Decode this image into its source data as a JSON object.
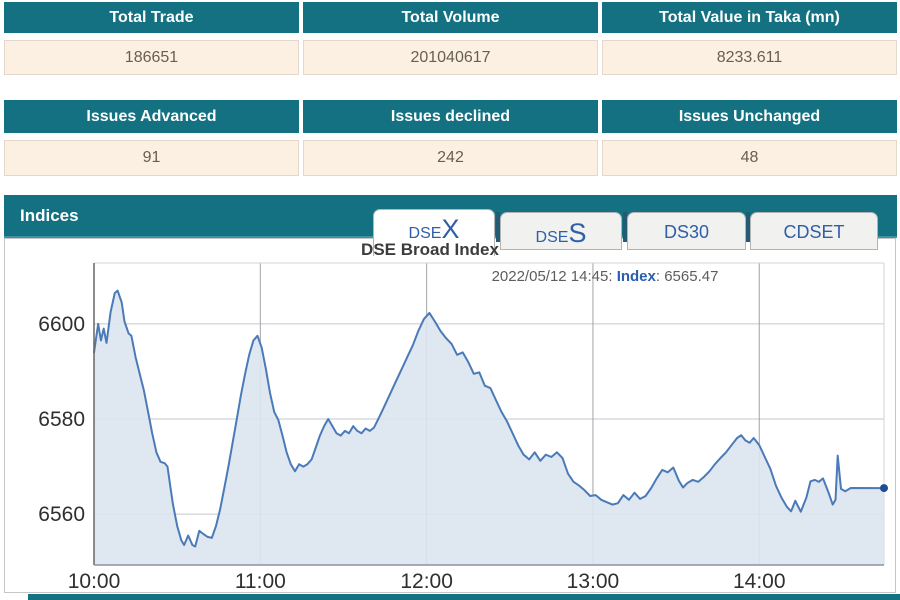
{
  "summary_table_1": {
    "headers": [
      "Total Trade",
      "Total Volume",
      "Total Value in Taka (mn)"
    ],
    "values": [
      "186651",
      "201040617",
      "8233.611"
    ]
  },
  "summary_table_2": {
    "headers": [
      "Issues Advanced",
      "Issues declined",
      "Issues Unchanged"
    ],
    "values": [
      "91",
      "242",
      "48"
    ]
  },
  "indices": {
    "title": "Indices",
    "tabs": [
      {
        "prefix": "DSE",
        "suffix": "X",
        "active": true
      },
      {
        "prefix": "DSE",
        "suffix": "S",
        "active": false
      },
      {
        "prefix": "DS30",
        "suffix": "",
        "active": false
      },
      {
        "prefix": "CDSET",
        "suffix": "",
        "active": false
      }
    ]
  },
  "chart_data": {
    "type": "area",
    "title": "DSE Broad Index",
    "tooltip": {
      "prefix": "2022/05/12 14:45: ",
      "label": "Index",
      "suffix": ": 6565.47"
    },
    "last_value": 6565.47,
    "x_ticks": [
      "10:00",
      "11:00",
      "12:00",
      "13:00",
      "14:00"
    ],
    "x_tick_minutes": [
      0,
      60,
      120,
      180,
      240
    ],
    "y_ticks": [
      6560,
      6580,
      6600
    ],
    "xlim": [
      0,
      285
    ],
    "ylim": [
      6549.3,
      6612.8
    ],
    "grid": true,
    "line_color": "#4a7ab8",
    "fill_color": "#dce4f0",
    "marker_color": "#1d4e94",
    "series": [
      {
        "name": "Index",
        "points": [
          [
            0,
            6594
          ],
          [
            1.5,
            6600
          ],
          [
            2.5,
            6596.5
          ],
          [
            3.5,
            6599
          ],
          [
            4.5,
            6596
          ],
          [
            6,
            6602.5
          ],
          [
            7.5,
            6606.5
          ],
          [
            8.5,
            6607
          ],
          [
            10,
            6604.5
          ],
          [
            11,
            6600.5
          ],
          [
            12.5,
            6598
          ],
          [
            13.5,
            6597.5
          ],
          [
            15,
            6593
          ],
          [
            16.5,
            6589.5
          ],
          [
            18,
            6586
          ],
          [
            19.5,
            6581.5
          ],
          [
            21,
            6577
          ],
          [
            22.5,
            6573
          ],
          [
            24,
            6571
          ],
          [
            25.5,
            6570.7
          ],
          [
            26.5,
            6570
          ],
          [
            27.5,
            6566
          ],
          [
            28.5,
            6562
          ],
          [
            30,
            6557.5
          ],
          [
            31.5,
            6554.5
          ],
          [
            32.5,
            6553.5
          ],
          [
            34,
            6555.5
          ],
          [
            35.5,
            6553.5
          ],
          [
            36.5,
            6553.2
          ],
          [
            38,
            6556.5
          ],
          [
            39.5,
            6555.8
          ],
          [
            41,
            6555.2
          ],
          [
            42.5,
            6555
          ],
          [
            44,
            6557.5
          ],
          [
            45.5,
            6561
          ],
          [
            47,
            6565.5
          ],
          [
            48.5,
            6570
          ],
          [
            50,
            6575
          ],
          [
            51.5,
            6580
          ],
          [
            53,
            6585
          ],
          [
            54.5,
            6589.5
          ],
          [
            56,
            6593.5
          ],
          [
            57.5,
            6596.5
          ],
          [
            59,
            6597.5
          ],
          [
            60.5,
            6595
          ],
          [
            62,
            6590.5
          ],
          [
            63.5,
            6585.5
          ],
          [
            65,
            6581.5
          ],
          [
            66.5,
            6579.8
          ],
          [
            68,
            6576.5
          ],
          [
            69.5,
            6573
          ],
          [
            71,
            6570.5
          ],
          [
            72.5,
            6569
          ],
          [
            74,
            6570.5
          ],
          [
            75.5,
            6570
          ],
          [
            77,
            6570.5
          ],
          [
            78.5,
            6571.5
          ],
          [
            80,
            6574
          ],
          [
            81.5,
            6576.5
          ],
          [
            83,
            6578.5
          ],
          [
            84.5,
            6580
          ],
          [
            86,
            6578.5
          ],
          [
            87.5,
            6577
          ],
          [
            89,
            6576.5
          ],
          [
            90.5,
            6577.5
          ],
          [
            92,
            6577
          ],
          [
            93.5,
            6578.5
          ],
          [
            95,
            6577.5
          ],
          [
            96.5,
            6577
          ],
          [
            98,
            6578
          ],
          [
            99.5,
            6577.5
          ],
          [
            101,
            6578.2
          ],
          [
            103,
            6580.5
          ],
          [
            105,
            6583
          ],
          [
            107,
            6585.5
          ],
          [
            109,
            6588
          ],
          [
            111,
            6590.5
          ],
          [
            113,
            6593
          ],
          [
            115,
            6595.5
          ],
          [
            117,
            6598.5
          ],
          [
            119,
            6601
          ],
          [
            121,
            6602.3
          ],
          [
            123,
            6600.5
          ],
          [
            125,
            6598.5
          ],
          [
            127,
            6597
          ],
          [
            129,
            6595.8
          ],
          [
            131,
            6593.5
          ],
          [
            133,
            6594
          ],
          [
            135,
            6592
          ],
          [
            137,
            6589.5
          ],
          [
            139,
            6589.8
          ],
          [
            141,
            6587
          ],
          [
            143,
            6586.5
          ],
          [
            145,
            6584
          ],
          [
            147,
            6581.5
          ],
          [
            149,
            6579.5
          ],
          [
            151,
            6577
          ],
          [
            153,
            6574.5
          ],
          [
            155,
            6572.5
          ],
          [
            157,
            6571.5
          ],
          [
            159,
            6573
          ],
          [
            161,
            6571.2
          ],
          [
            163,
            6572.5
          ],
          [
            165,
            6572
          ],
          [
            167,
            6573
          ],
          [
            169,
            6571.8
          ],
          [
            171,
            6568.5
          ],
          [
            173,
            6566.8
          ],
          [
            175,
            6566
          ],
          [
            177,
            6565
          ],
          [
            179,
            6563.8
          ],
          [
            181,
            6564
          ],
          [
            183,
            6563
          ],
          [
            185,
            6562.5
          ],
          [
            187,
            6562
          ],
          [
            189,
            6562.3
          ],
          [
            191,
            6564
          ],
          [
            193,
            6563
          ],
          [
            195,
            6564.5
          ],
          [
            197,
            6563.2
          ],
          [
            199,
            6563.8
          ],
          [
            201,
            6565.5
          ],
          [
            203,
            6567.5
          ],
          [
            205,
            6569.3
          ],
          [
            207,
            6568.8
          ],
          [
            209,
            6569.8
          ],
          [
            211,
            6567
          ],
          [
            212.5,
            6565.6
          ],
          [
            214,
            6566.5
          ],
          [
            216,
            6567.2
          ],
          [
            218,
            6566.8
          ],
          [
            220,
            6567.8
          ],
          [
            222,
            6569
          ],
          [
            224,
            6570.5
          ],
          [
            226,
            6571.8
          ],
          [
            228,
            6573
          ],
          [
            230,
            6574.5
          ],
          [
            232,
            6576
          ],
          [
            233.5,
            6576.6
          ],
          [
            235,
            6575.5
          ],
          [
            236.5,
            6575
          ],
          [
            238,
            6576
          ],
          [
            240,
            6574.5
          ],
          [
            242,
            6572
          ],
          [
            244,
            6569.5
          ],
          [
            246,
            6566
          ],
          [
            248,
            6563.5
          ],
          [
            250,
            6561.5
          ],
          [
            251.5,
            6560.6
          ],
          [
            253,
            6562.8
          ],
          [
            255,
            6560.5
          ],
          [
            257,
            6563.5
          ],
          [
            258.5,
            6566.9
          ],
          [
            260,
            6567.2
          ],
          [
            261.5,
            6566.8
          ],
          [
            263,
            6567.5
          ],
          [
            265,
            6564.5
          ],
          [
            266.5,
            6562
          ],
          [
            267.5,
            6563
          ],
          [
            268.3,
            6572.3
          ],
          [
            269.5,
            6565.3
          ],
          [
            271,
            6564.8
          ],
          [
            273,
            6565.5
          ],
          [
            285,
            6565.47
          ]
        ]
      }
    ]
  },
  "colors": {
    "teal_header": "#147181",
    "cream_row": "#fcf0e2",
    "tab_text_blue": "#2e5fa7",
    "chart_line": "#4a7ab8",
    "chart_fill": "#dce4f0"
  }
}
